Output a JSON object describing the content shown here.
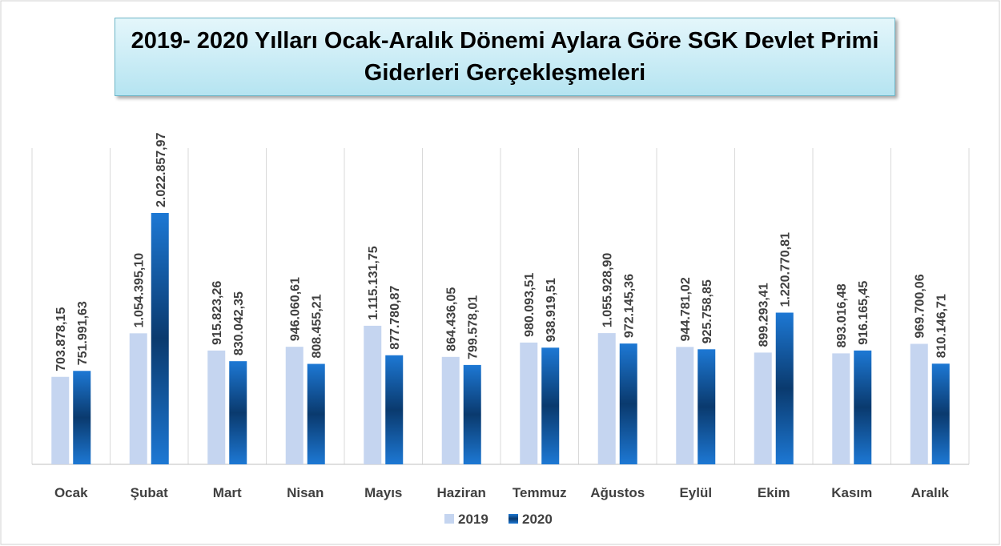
{
  "chart_data": {
    "type": "bar",
    "title": "2019- 2020 Yılları Ocak-Aralık Dönemi Aylara Göre SGK Devlet Primi Giderleri Gerçekleşmeleri",
    "categories": [
      "Ocak",
      "Şubat",
      "Mart",
      "Nisan",
      "Mayıs",
      "Haziran",
      "Temmuz",
      "Ağustos",
      "Eylül",
      "Ekim",
      "Kasım",
      "Aralık"
    ],
    "series": [
      {
        "name": "2019",
        "color": "#c5d5f0",
        "values": [
          703878.15,
          1054395.1,
          915823.26,
          946060.61,
          1115131.75,
          864436.05,
          980093.51,
          1055928.9,
          944781.02,
          899293.41,
          893016.48,
          969700.06
        ],
        "value_labels": [
          "703.878,15",
          "1.054.395,10",
          "915.823,26",
          "946.060,61",
          "1.115.131,75",
          "864.436,05",
          "980.093,51",
          "1.055.928,90",
          "944.781,02",
          "899.293,41",
          "893.016,48",
          "969.700,06"
        ]
      },
      {
        "name": "2020",
        "color": "#0b4f96",
        "values": [
          751991.63,
          2022857.97,
          830042.35,
          808455.21,
          877780.87,
          799578.01,
          938919.51,
          972145.36,
          925758.85,
          1220770.81,
          916165.45,
          810146.71
        ],
        "value_labels": [
          "751.991,63",
          "2.022.857,97",
          "830.042,35",
          "808.455,21",
          "877.780,87",
          "799.578,01",
          "938.919,51",
          "972.145,36",
          "925.758,85",
          "1.220.770,81",
          "916.165,45",
          "810.146,71"
        ]
      }
    ],
    "legend": "bottom"
  }
}
